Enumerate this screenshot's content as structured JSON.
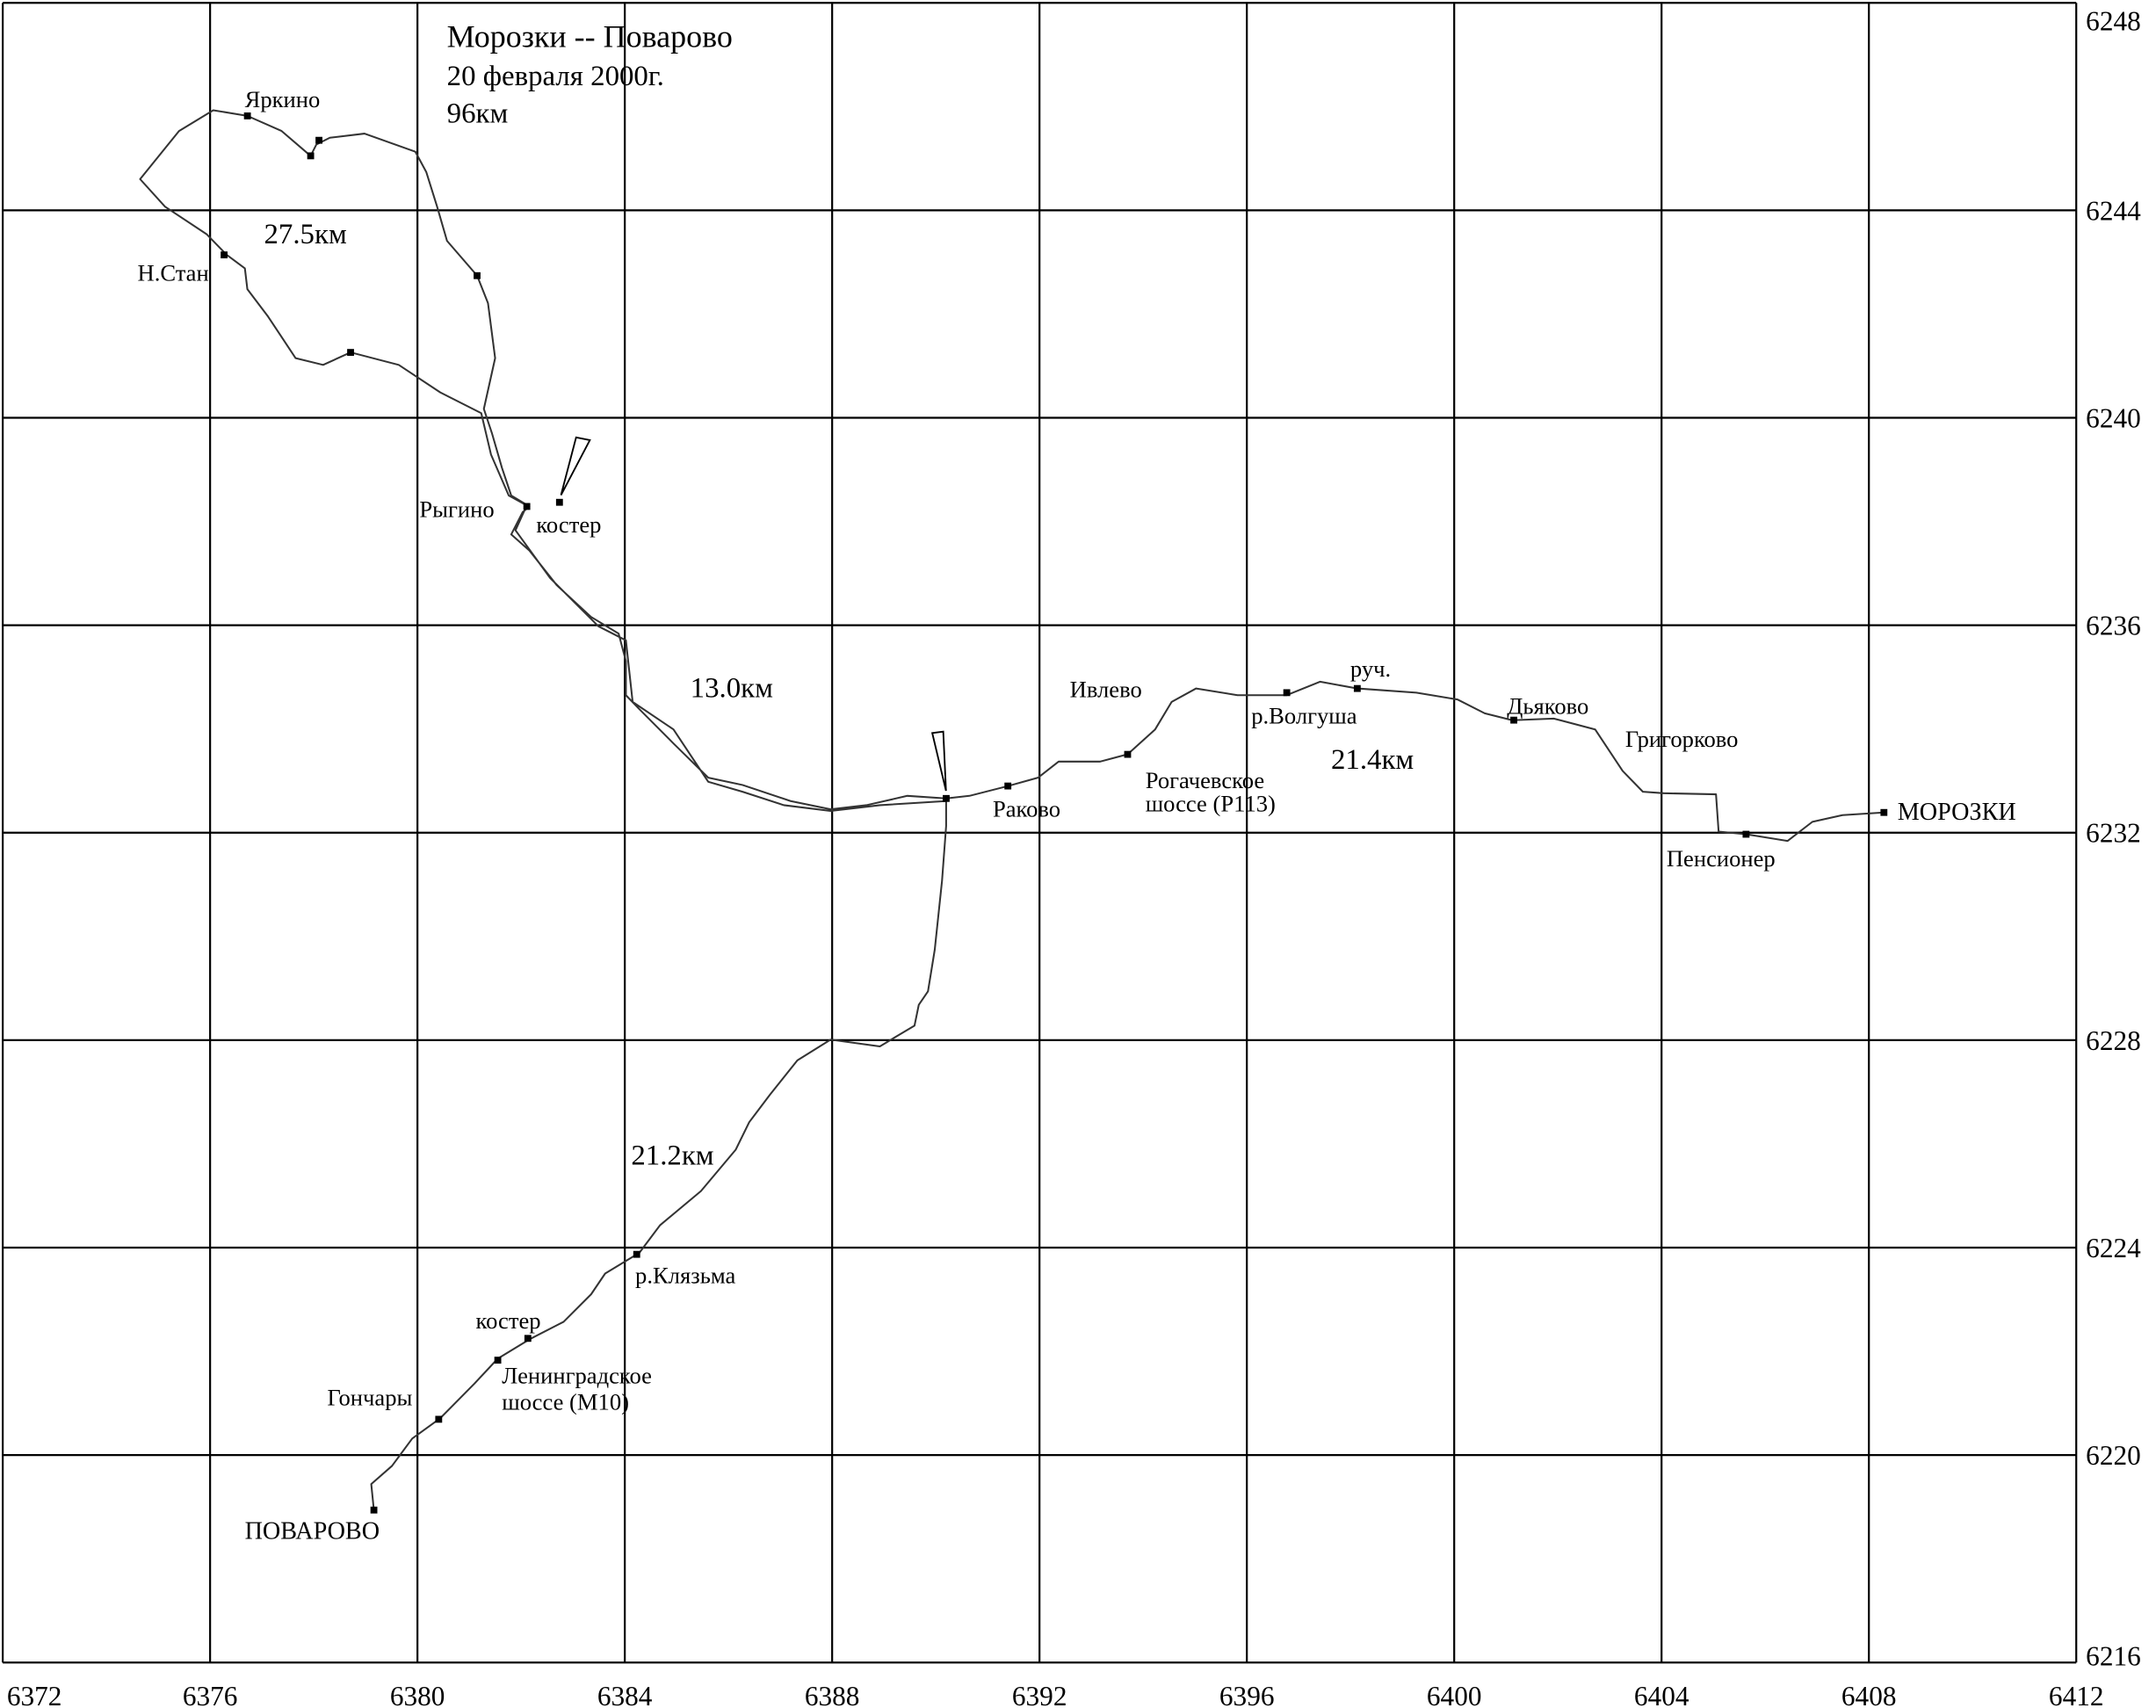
{
  "map": {
    "title": [
      "Морозки -- Поварово",
      "20 февраля 2000г.",
      "96км"
    ],
    "xlim": [
      6372,
      6412
    ],
    "ylim": [
      6216,
      6248
    ],
    "xticks": [
      6372,
      6376,
      6380,
      6384,
      6388,
      6392,
      6396,
      6400,
      6404,
      6408,
      6412
    ],
    "yticks": [
      6216,
      6220,
      6224,
      6228,
      6232,
      6236,
      6240,
      6244,
      6248
    ],
    "grid": true,
    "track": {
      "x": [
        6408.29,
        6407.49,
        6406.91,
        6406.43,
        6405.63,
        6405.1,
        6405.05,
        6404.04,
        6403.64,
        6403.25,
        6402.72,
        6401.92,
        6401.12,
        6400.59,
        6400.06,
        6399.27,
        6398.13,
        6397.41,
        6396.77,
        6395.82,
        6395.02,
        6394.55,
        6394.23,
        6393.7,
        6393.17,
        6392.37,
        6391.97,
        6391.39,
        6390.65,
        6390.2,
        6389.45,
        6388.66,
        6387.97,
        6387.2,
        6386.27,
        6385.61,
        6384.94,
        6384.28,
        6384.02,
        6384.02,
        6383.88,
        6383.35,
        6382.69,
        6382.16,
        6381.81,
        6382.03,
        6382.16,
        6381.81,
        6381.63,
        6381.44,
        6381.28,
        6381.5,
        6381.36,
        6381.15,
        6380.57,
        6380.38,
        6380.17,
        6379.96,
        6378.98,
        6378.31,
        6378.05,
        6377.94,
        6377.38,
        6376.72,
        6376.06,
        6375.4,
        6374.65,
        6375.13,
        6375.93,
        6376.32,
        6376.67,
        6376.72,
        6377.12,
        6377.65,
        6378.18,
        6378.71,
        6379.64,
        6380.44,
        6381.23,
        6381.42,
        6381.76,
        6382.11,
        6381.89,
        6382.56,
        6383.49,
        6384.02,
        6384.15,
        6384.94,
        6385.61,
        6386.27,
        6387.07,
        6387.97,
        6388.92,
        6390.2,
        6390.2,
        6390.12,
        6389.98,
        6389.85,
        6389.67,
        6389.59,
        6388.92,
        6387.97,
        6387.33,
        6386.8,
        6386.4,
        6386.14,
        6385.47,
        6384.68,
        6384.28,
        6383.62,
        6383.35,
        6382.82,
        6382.16,
        6381.55,
        6381.1,
        6380.44,
        6379.9,
        6379.51,
        6379.11,
        6379.16
      ],
      "y": [
        6232.39,
        6232.34,
        6232.21,
        6231.84,
        6231.97,
        6232.02,
        6232.74,
        6232.76,
        6232.79,
        6233.19,
        6233.99,
        6234.2,
        6234.17,
        6234.3,
        6234.57,
        6234.7,
        6234.78,
        6234.91,
        6234.65,
        6234.65,
        6234.78,
        6234.52,
        6233.99,
        6233.51,
        6233.37,
        6233.37,
        6233.06,
        6232.9,
        6232.71,
        6232.66,
        6232.71,
        6232.53,
        6232.45,
        6232.61,
        6232.92,
        6233.06,
        6233.72,
        6234.38,
        6234.65,
        6235.31,
        6235.84,
        6236.16,
        6236.77,
        6237.44,
        6237.75,
        6238.18,
        6238.29,
        6238.5,
        6239.03,
        6239.69,
        6240.17,
        6241.15,
        6242.21,
        6242.74,
        6243.41,
        6244.07,
        6244.74,
        6245.13,
        6245.48,
        6245.4,
        6245.27,
        6245.05,
        6245.53,
        6245.82,
        6245.93,
        6245.53,
        6244.6,
        6244.07,
        6243.54,
        6243.14,
        6242.88,
        6242.48,
        6241.95,
        6241.15,
        6241.02,
        6241.26,
        6241.02,
        6240.49,
        6240.09,
        6239.29,
        6238.5,
        6238.31,
        6237.83,
        6236.91,
        6235.98,
        6235.71,
        6234.52,
        6233.99,
        6232.98,
        6232.79,
        6232.53,
        6232.42,
        6232.53,
        6232.61,
        6232.13,
        6231.07,
        6229.74,
        6228.94,
        6228.68,
        6228.28,
        6227.88,
        6228.01,
        6227.61,
        6226.95,
        6226.42,
        6225.89,
        6225.09,
        6224.43,
        6223.9,
        6223.5,
        6223.1,
        6222.57,
        6222.23,
        6221.86,
        6221.38,
        6220.71,
        6220.32,
        6219.79,
        6219.44,
        6218.94
      ]
    },
    "points": [
      {
        "x": 6408.29,
        "y": 6232.39
      },
      {
        "x": 6405.63,
        "y": 6231.97
      },
      {
        "x": 6401.15,
        "y": 6234.17
      },
      {
        "x": 6398.13,
        "y": 6234.78
      },
      {
        "x": 6396.77,
        "y": 6234.7
      },
      {
        "x": 6393.7,
        "y": 6233.51
      },
      {
        "x": 6391.39,
        "y": 6232.9
      },
      {
        "x": 6390.2,
        "y": 6232.66
      },
      {
        "x": 6382.11,
        "y": 6238.29
      },
      {
        "x": 6382.74,
        "y": 6238.37
      },
      {
        "x": 6381.15,
        "y": 6242.74
      },
      {
        "x": 6378.71,
        "y": 6241.26
      },
      {
        "x": 6376.27,
        "y": 6243.14
      },
      {
        "x": 6376.72,
        "y": 6245.82
      },
      {
        "x": 6377.94,
        "y": 6245.05
      },
      {
        "x": 6378.1,
        "y": 6245.35
      },
      {
        "x": 6384.23,
        "y": 6223.87
      },
      {
        "x": 6382.13,
        "y": 6222.25
      },
      {
        "x": 6381.55,
        "y": 6221.83
      },
      {
        "x": 6380.41,
        "y": 6220.69
      },
      {
        "x": 6379.16,
        "y": 6218.94
      }
    ],
    "labels": [
      "МОРОЗКИ",
      "Пенсионер",
      "Григорково",
      "Дьяково",
      "руч.",
      "р.Волгуша",
      "Ивлево",
      "Рогачевское",
      "шоссе (Р113)",
      "Раково",
      "Рыгино",
      "костер",
      "Н.Стан",
      "Яркино",
      "р.Клязьма",
      "костер",
      "Ленинградское",
      "шоссе (М10)",
      "Гончары",
      "ПОВАРОВО"
    ],
    "distances": [
      "27.5км",
      "13.0км",
      "21.4км",
      "21.2км"
    ]
  }
}
